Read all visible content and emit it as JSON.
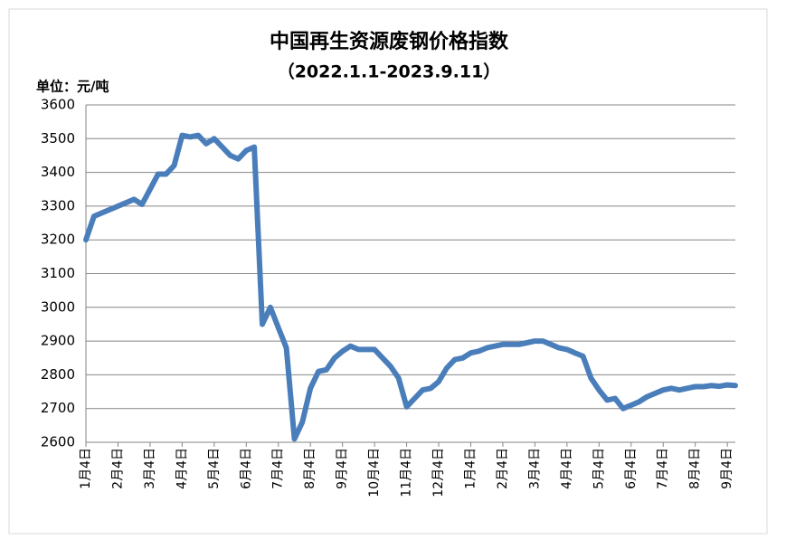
{
  "chart_data": {
    "type": "line",
    "title": "中国再生资源废钢价格指数",
    "subtitle": "（2022.1.1-2023.9.11）",
    "y_label": "单位：元/吨",
    "categories": [
      "1月4日",
      null,
      null,
      null,
      "2月4日",
      null,
      null,
      null,
      "3月4日",
      null,
      null,
      null,
      "4月4日",
      null,
      null,
      null,
      "5月4日",
      null,
      null,
      null,
      "6月4日",
      null,
      null,
      null,
      "7月4日",
      null,
      null,
      null,
      "8月4日",
      null,
      null,
      null,
      "9月4日",
      null,
      null,
      null,
      "10月4日",
      null,
      null,
      null,
      "11月4日",
      null,
      null,
      null,
      "12月4日",
      null,
      null,
      null,
      "1月4日",
      null,
      null,
      null,
      "2月4日",
      null,
      null,
      null,
      "3月4日",
      null,
      null,
      null,
      "4月4日",
      null,
      null,
      null,
      "5月4日",
      null,
      null,
      null,
      "6月4日",
      null,
      null,
      null,
      "7月4日",
      null,
      null,
      null,
      "8月4日",
      null,
      null,
      null,
      "9月4日",
      null
    ],
    "series": [
      {
        "name": "废钢价格指数",
        "color": "#4a7ebb",
        "values": [
          3200,
          3270,
          3280,
          3290,
          3300,
          3310,
          3320,
          3305,
          3350,
          3395,
          3395,
          3420,
          3510,
          3505,
          3510,
          3485,
          3500,
          3475,
          3450,
          3440,
          3465,
          3475,
          2950,
          3000,
          2940,
          2880,
          2610,
          2660,
          2760,
          2810,
          2815,
          2850,
          2870,
          2885,
          2875,
          2875,
          2875,
          2850,
          2825,
          2790,
          2705,
          2730,
          2755,
          2760,
          2780,
          2820,
          2845,
          2850,
          2865,
          2870,
          2880,
          2885,
          2890,
          2890,
          2890,
          2895,
          2900,
          2900,
          2890,
          2880,
          2875,
          2865,
          2855,
          2790,
          2755,
          2725,
          2730,
          2700,
          2710,
          2720,
          2735,
          2745,
          2755,
          2760,
          2755,
          2760,
          2765,
          2765,
          2768,
          2766,
          2770,
          2768
        ]
      }
    ],
    "ylim": [
      2600,
      3600
    ],
    "yticks": [
      2600,
      2700,
      2800,
      2900,
      3000,
      3100,
      3200,
      3300,
      3400,
      3500,
      3600
    ],
    "grid": true,
    "legend": false
  }
}
